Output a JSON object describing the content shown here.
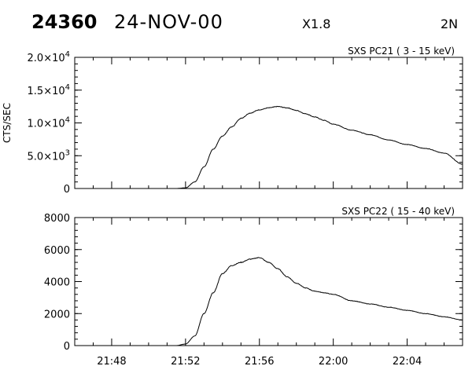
{
  "header": {
    "event_number": "24360",
    "date": "24-NOV-00",
    "flare_class": "X1.8",
    "position": "2N"
  },
  "chart_data": [
    {
      "type": "line",
      "title": "SXS PC21  (  3 - 15 keV)",
      "ylabel": "CTS/SEC",
      "xlabel": "",
      "xlim": [
        "21:46",
        "22:07"
      ],
      "ylim": [
        0,
        20000
      ],
      "yticks": [
        0,
        5000,
        10000,
        15000,
        20000
      ],
      "ytick_labels": [
        {
          "mant": "0",
          "exp": ""
        },
        {
          "mant": "5.0×10",
          "exp": "3"
        },
        {
          "mant": "1.0×10",
          "exp": "4"
        },
        {
          "mant": "1.5×10",
          "exp": "4"
        },
        {
          "mant": "2.0×10",
          "exp": "4"
        }
      ],
      "series": [
        {
          "x": [
            "21:50:00",
            "21:51:00",
            "21:51:30",
            "21:52:00",
            "21:52:30",
            "21:53:00",
            "21:53:30",
            "21:54:00",
            "21:54:30",
            "21:55:00",
            "21:55:30",
            "21:56:00",
            "21:56:30",
            "21:57:00",
            "21:57:30",
            "21:58:00",
            "21:58:30",
            "21:59:00",
            "21:59:30",
            "22:00:00",
            "22:01:00",
            "22:02:00",
            "22:03:00",
            "22:04:00",
            "22:05:00",
            "22:06:00",
            "22:07:00"
          ],
          "y": [
            0,
            0,
            0,
            100,
            1000,
            3300,
            6000,
            8000,
            9400,
            10700,
            11500,
            12000,
            12300,
            12500,
            12300,
            11900,
            11400,
            10900,
            10400,
            9800,
            8900,
            8200,
            7400,
            6700,
            6100,
            5400,
            3700
          ]
        }
      ],
      "grid": false
    },
    {
      "type": "line",
      "title": "SXS PC22  ( 15 - 40 keV)",
      "ylabel": "",
      "xlabel": "",
      "xlim": [
        "21:46",
        "22:07"
      ],
      "ylim": [
        0,
        8000
      ],
      "yticks": [
        0,
        2000,
        4000,
        6000,
        8000
      ],
      "ytick_labels": [
        {
          "mant": "0",
          "exp": ""
        },
        {
          "mant": "2000",
          "exp": ""
        },
        {
          "mant": "4000",
          "exp": ""
        },
        {
          "mant": "6000",
          "exp": ""
        },
        {
          "mant": "8000",
          "exp": ""
        }
      ],
      "xticks": [
        "21:48",
        "21:52",
        "21:56",
        "22:00",
        "22:04"
      ],
      "series": [
        {
          "x": [
            "21:50:00",
            "21:51:00",
            "21:51:30",
            "21:52:00",
            "21:52:30",
            "21:53:00",
            "21:53:30",
            "21:54:00",
            "21:54:30",
            "21:55:00",
            "21:55:30",
            "21:56:00",
            "21:56:30",
            "21:57:00",
            "21:57:30",
            "21:58:00",
            "21:58:30",
            "21:59:00",
            "21:59:30",
            "22:00:00",
            "22:01:00",
            "22:02:00",
            "22:03:00",
            "22:04:00",
            "22:05:00",
            "22:06:00",
            "22:07:00"
          ],
          "y": [
            0,
            0,
            0,
            100,
            600,
            2000,
            3300,
            4500,
            5000,
            5200,
            5400,
            5500,
            5200,
            4800,
            4300,
            3900,
            3600,
            3400,
            3300,
            3200,
            2800,
            2600,
            2400,
            2200,
            2000,
            1800,
            1600
          ]
        }
      ],
      "grid": false
    }
  ]
}
